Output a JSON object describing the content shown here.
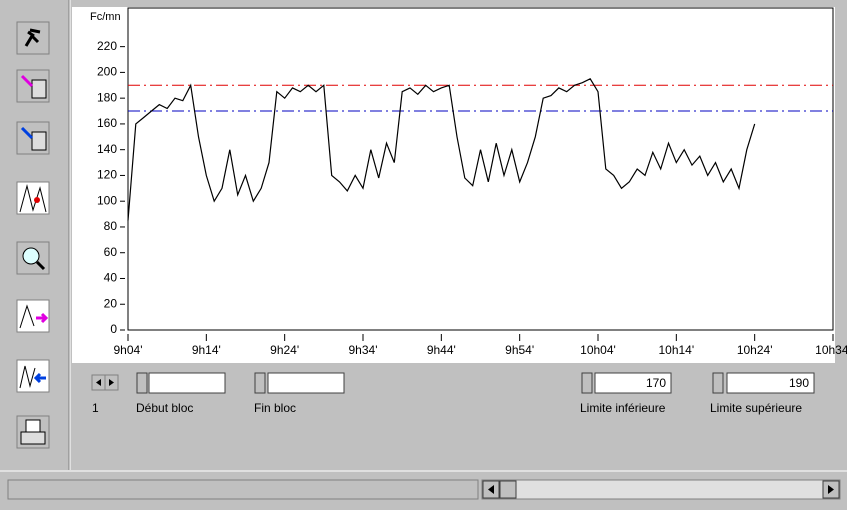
{
  "chart_data": {
    "type": "line",
    "y_label": "Fc/mn",
    "color": "#000000",
    "x": [
      544,
      545,
      546,
      547,
      548,
      549,
      550,
      551,
      552,
      553,
      554,
      555,
      556,
      557,
      558,
      559,
      560,
      561,
      562,
      563,
      564,
      565,
      566,
      567,
      568,
      569,
      570,
      571,
      572,
      573,
      574,
      575,
      576,
      577,
      578,
      579,
      580,
      581,
      582,
      583,
      584,
      585,
      586,
      587,
      588,
      589,
      590,
      591,
      592,
      593,
      594,
      595,
      596,
      597,
      598,
      599,
      600,
      601,
      602,
      603,
      604,
      605,
      606,
      607,
      608,
      609,
      610,
      611,
      612,
      613,
      614,
      615,
      616,
      617,
      618,
      619,
      620,
      621,
      622,
      623,
      624
    ],
    "values": [
      85,
      160,
      165,
      170,
      175,
      172,
      180,
      178,
      190,
      150,
      120,
      100,
      110,
      140,
      105,
      120,
      100,
      110,
      130,
      185,
      180,
      188,
      185,
      190,
      185,
      190,
      120,
      115,
      108,
      120,
      110,
      140,
      118,
      145,
      130,
      185,
      188,
      183,
      190,
      185,
      188,
      190,
      150,
      118,
      112,
      140,
      115,
      145,
      120,
      140,
      115,
      130,
      150,
      180,
      182,
      188,
      185,
      190,
      192,
      195,
      185,
      125,
      120,
      110,
      115,
      125,
      120,
      138,
      125,
      145,
      130,
      140,
      128,
      135,
      120,
      130,
      115,
      125,
      110,
      140,
      160
    ],
    "xlim": [
      544,
      634
    ],
    "ylim": [
      0,
      250
    ],
    "xticks": [
      {
        "value": 544,
        "label": "9h04'"
      },
      {
        "value": 554,
        "label": "9h14'"
      },
      {
        "value": 564,
        "label": "9h24'"
      },
      {
        "value": 574,
        "label": "9h34'"
      },
      {
        "value": 584,
        "label": "9h44'"
      },
      {
        "value": 594,
        "label": "9h54'"
      },
      {
        "value": 604,
        "label": "10h04'"
      },
      {
        "value": 614,
        "label": "10h14'"
      },
      {
        "value": 624,
        "label": "10h24'"
      },
      {
        "value": 634,
        "label": "10h34'"
      }
    ],
    "yticks": [
      0,
      20,
      40,
      60,
      80,
      100,
      120,
      140,
      160,
      180,
      200,
      220
    ],
    "lower_limit": 170,
    "lower_color": "#0000c0",
    "upper_limit": 190,
    "upper_color": "#e00000"
  },
  "controls": {
    "block_index": "1",
    "start_label": "Début bloc",
    "end_label": "Fin bloc",
    "lower_label": "Limite inférieure",
    "upper_label": "Limite supérieure"
  }
}
